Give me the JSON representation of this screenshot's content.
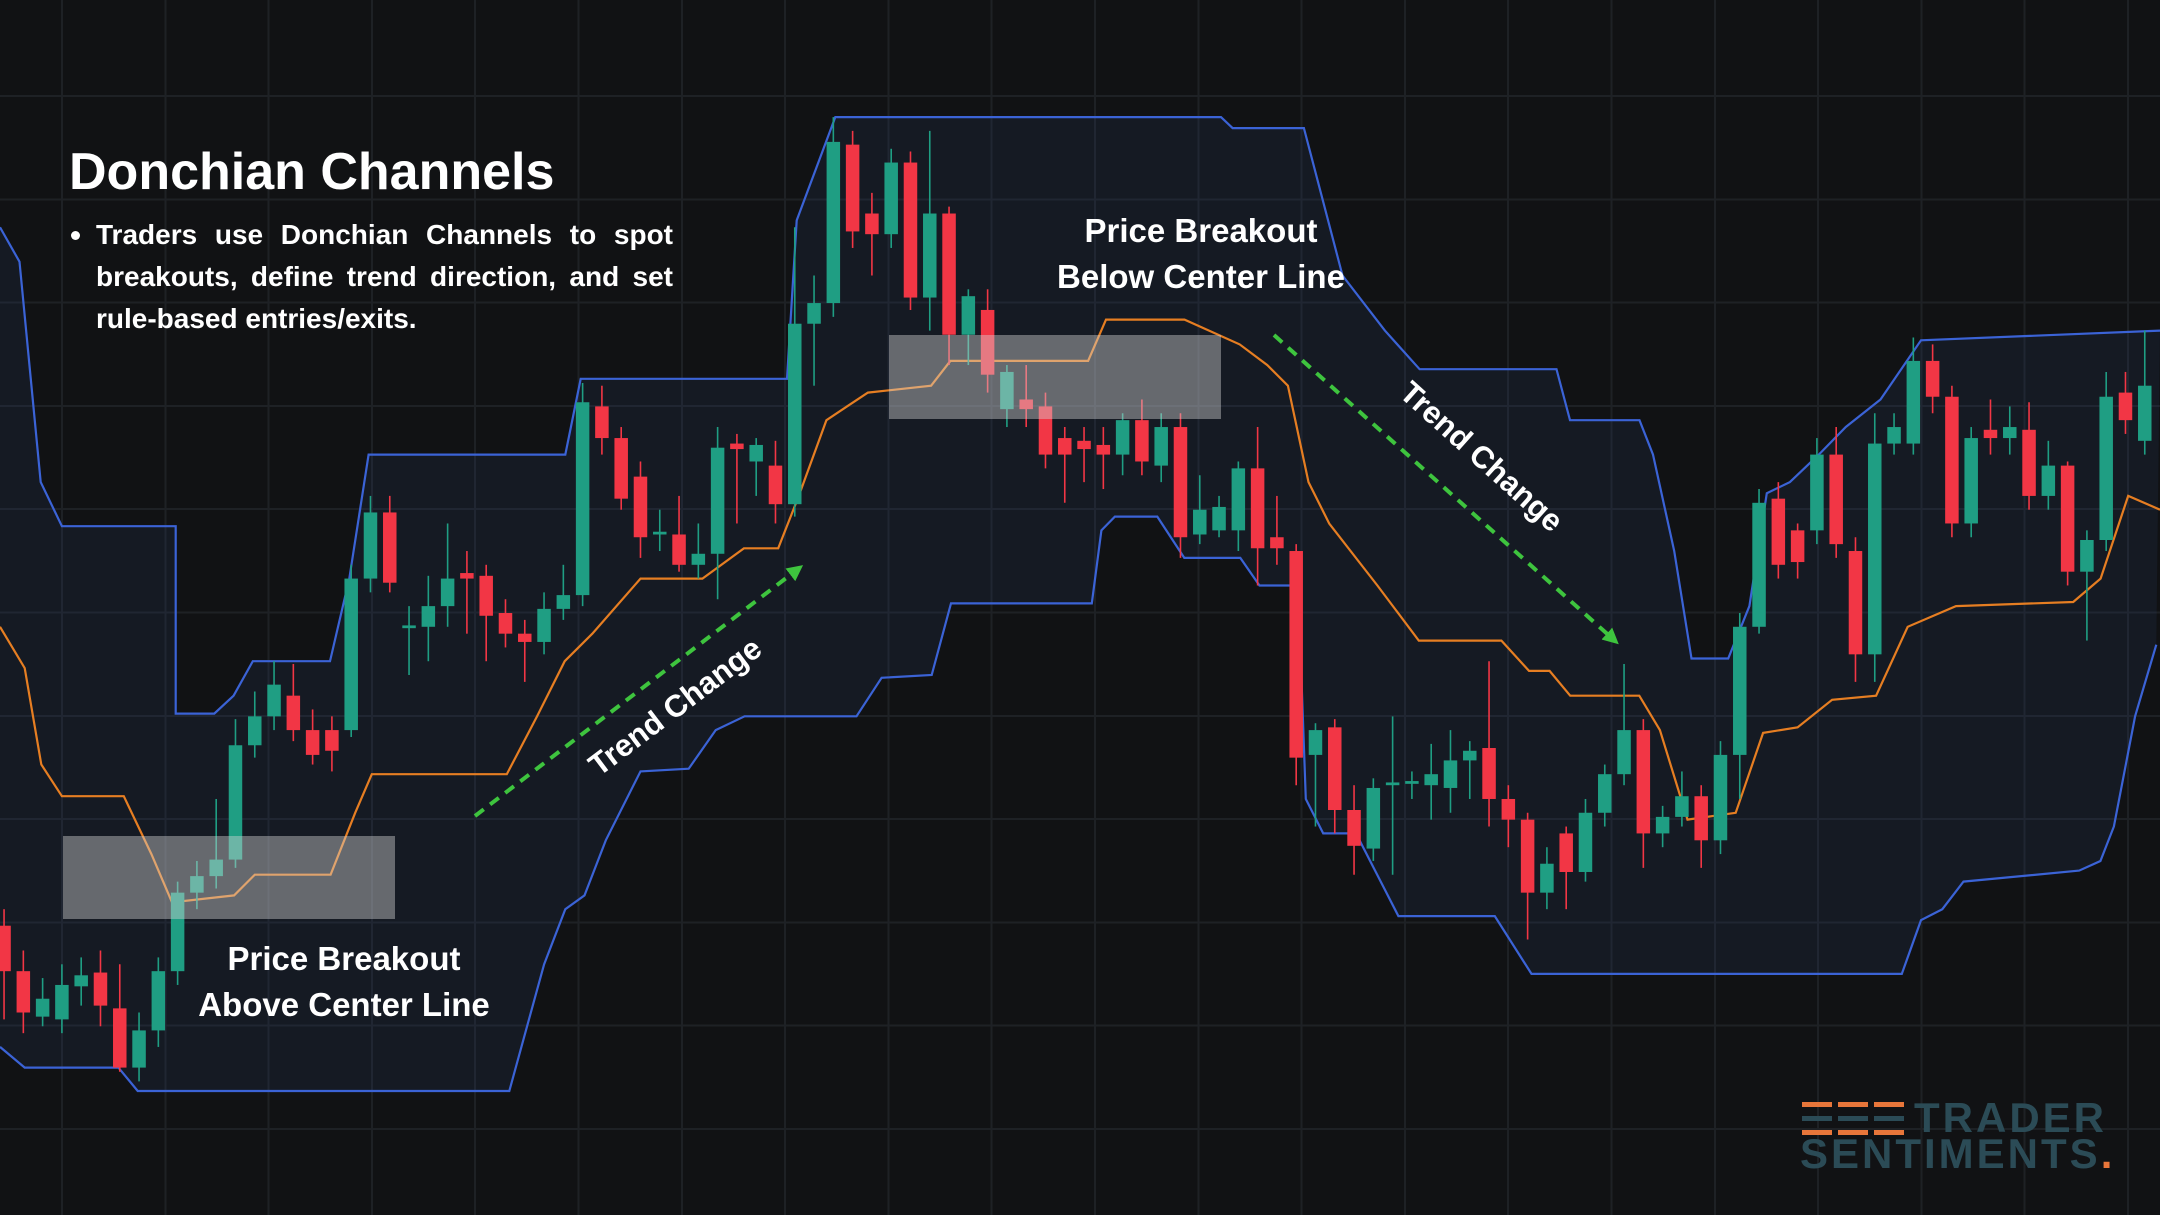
{
  "chart_data": {
    "type": "candlestick",
    "title": "Donchian Channels",
    "bullets": [
      "Traders use Donchian Channels to spot breakouts, define trend direction, and set rule-based entries/exits."
    ],
    "annotations": [
      {
        "lines": [
          "Price Breakout",
          "Above Center Line"
        ]
      },
      {
        "lines": [
          "Price Breakout",
          "Below Center Line"
        ]
      }
    ],
    "trend_labels": [
      "Trend Change",
      "Trend Change"
    ],
    "logo": {
      "line1": "TRADER",
      "line2": "SENTIMENTS",
      "dot": "."
    },
    "xlim": [
      -0.21,
      111.79
    ],
    "ylim": [
      118,
      1000
    ],
    "up_color": "#1f9e83",
    "down_color": "#f23645",
    "open": [
      328,
      295,
      262,
      260,
      284,
      294,
      268,
      225,
      252,
      295,
      352,
      364,
      376,
      459,
      480,
      495,
      470,
      470,
      470,
      580,
      628,
      544,
      545,
      560,
      584,
      582,
      555,
      540,
      534,
      558,
      568,
      705,
      682,
      654,
      612,
      612,
      590,
      598,
      678,
      665,
      662,
      634,
      765,
      780,
      895,
      845,
      830,
      882,
      784,
      845,
      757,
      775,
      703,
      710,
      705,
      682,
      680,
      677,
      670,
      695,
      662,
      690,
      612,
      615,
      615,
      660,
      610,
      600,
      452,
      472,
      412,
      384,
      430,
      431,
      430,
      428,
      448,
      457,
      420,
      405,
      352,
      395,
      367,
      410,
      438,
      470,
      395,
      407,
      422,
      390,
      452,
      545,
      638,
      615,
      615,
      670,
      600,
      525,
      678,
      678,
      738,
      712,
      620,
      688,
      682,
      688,
      640,
      662,
      585,
      608,
      715,
      680
    ],
    "high": [
      340,
      310,
      290,
      300,
      305,
      310,
      300,
      265,
      305,
      360,
      375,
      420,
      478,
      498,
      520,
      518,
      485,
      480,
      590,
      640,
      640,
      560,
      582,
      620,
      600,
      590,
      565,
      550,
      570,
      590,
      722,
      720,
      690,
      665,
      630,
      640,
      620,
      690,
      685,
      682,
      680,
      835,
      800,
      915,
      905,
      860,
      892,
      890,
      905,
      850,
      790,
      790,
      735,
      735,
      715,
      690,
      690,
      690,
      700,
      710,
      700,
      700,
      655,
      640,
      665,
      690,
      640,
      605,
      475,
      478,
      430,
      435,
      480,
      440,
      460,
      470,
      462,
      520,
      430,
      410,
      385,
      400,
      420,
      445,
      518,
      478,
      415,
      440,
      430,
      462,
      555,
      645,
      650,
      620,
      682,
      690,
      610,
      700,
      700,
      755,
      750,
      720,
      690,
      710,
      705,
      708,
      680,
      665,
      615,
      730,
      730,
      760
    ],
    "low": [
      260,
      250,
      255,
      250,
      270,
      255,
      222,
      215,
      240,
      285,
      340,
      355,
      370,
      450,
      470,
      462,
      445,
      440,
      465,
      570,
      570,
      510,
      520,
      545,
      540,
      520,
      530,
      505,
      525,
      550,
      560,
      670,
      630,
      595,
      600,
      585,
      580,
      565,
      620,
      640,
      620,
      625,
      720,
      770,
      820,
      800,
      820,
      775,
      760,
      735,
      735,
      715,
      690,
      690,
      660,
      635,
      650,
      645,
      655,
      655,
      650,
      595,
      605,
      610,
      600,
      575,
      590,
      430,
      400,
      395,
      365,
      375,
      365,
      420,
      405,
      410,
      420,
      400,
      385,
      318,
      340,
      340,
      360,
      400,
      430,
      370,
      385,
      400,
      370,
      380,
      420,
      540,
      580,
      580,
      605,
      595,
      505,
      505,
      670,
      670,
      700,
      610,
      610,
      670,
      670,
      630,
      630,
      575,
      535,
      600,
      685,
      670
    ],
    "close": [
      295,
      265,
      275,
      285,
      292,
      270,
      225,
      252,
      295,
      352,
      364,
      376,
      459,
      480,
      503,
      470,
      452,
      455,
      580,
      628,
      577,
      546,
      560,
      580,
      580,
      553,
      540,
      534,
      558,
      568,
      708,
      682,
      638,
      610,
      614,
      590,
      598,
      675,
      674,
      677,
      634,
      765,
      780,
      897,
      832,
      830,
      882,
      784,
      845,
      757,
      785,
      728,
      730,
      703,
      670,
      670,
      674,
      670,
      695,
      665,
      690,
      610,
      630,
      632,
      660,
      602,
      602,
      450,
      470,
      412,
      386,
      428,
      432,
      433,
      438,
      448,
      455,
      420,
      405,
      352,
      373,
      367,
      410,
      438,
      470,
      395,
      407,
      422,
      390,
      452,
      545,
      635,
      590,
      592,
      670,
      605,
      525,
      678,
      690,
      738,
      712,
      620,
      682,
      682,
      690,
      640,
      662,
      585,
      608,
      712,
      695,
      720
    ],
    "channels": [
      {
        "color": "#3b63d6",
        "x": [
          -0.21,
          0.8,
          1.9,
          3,
          8.9,
          8.9,
          10.9,
          11.9,
          12.9,
          16.9,
          17.9,
          18.9,
          29.1,
          29.9,
          40.6,
          41.1,
          43.1,
          63.1,
          63.7,
          67.4,
          69.4,
          71.6,
          73.4,
          80.5,
          81.2,
          84.8,
          85.5,
          86.6,
          87.5,
          89.4,
          90.5,
          91.4,
          92.6,
          94.1,
          95.5,
          97.3,
          99.4,
          111.79
        ],
        "values": [
          835,
          810,
          650,
          618,
          618,
          482,
          482,
          495,
          520,
          520,
          580,
          670,
          670,
          725,
          725,
          840,
          915,
          915,
          907,
          907,
          800,
          760,
          732,
          732,
          695,
          695,
          670,
          600,
          522,
          522,
          560,
          642,
          650,
          670,
          690,
          710,
          753,
          760
        ]
      },
      {
        "color": "#e67e22",
        "x": [
          -0.21,
          1.07,
          1.93,
          3,
          6.21,
          7.64,
          8.71,
          11.93,
          13,
          16.93,
          18.21,
          19.07,
          26.07,
          27.64,
          29.07,
          30.5,
          33,
          36.21,
          38.36,
          40.14,
          41.21,
          42.64,
          43.71,
          44.79,
          48.07,
          49.07,
          56.21,
          57.14,
          61.21,
          64.07,
          65.5,
          66.57,
          67.64,
          68.71,
          71.21,
          73.36,
          77.64,
          79.07,
          80.14,
          81.21,
          84.79,
          85.86,
          87.29,
          89.79,
          91.21,
          93,
          94.79,
          97.07,
          98.71,
          101.21,
          107.29,
          108.71,
          110.14,
          111.79
        ],
        "values": [
          545,
          515,
          445,
          422,
          422,
          380,
          345,
          350,
          365,
          365,
          410,
          438,
          438,
          480,
          520,
          540,
          580,
          580,
          602,
          602,
          640,
          695,
          705,
          715,
          720,
          738,
          738,
          768,
          768,
          750,
          735,
          720,
          650,
          620,
          575,
          535,
          535,
          513,
          513,
          495,
          495,
          470,
          405,
          410,
          468,
          472,
          492,
          495,
          545,
          560,
          563,
          580,
          640,
          630
        ]
      },
      {
        "color": "#3b63d6",
        "x": [
          -0.21,
          1.07,
          5.93,
          6.93,
          26.2,
          28,
          29.1,
          30.1,
          31.2,
          33,
          35.5,
          36.9,
          38.4,
          44.2,
          45.5,
          48.1,
          49.1,
          56.4,
          56.9,
          57.6,
          59.8,
          61.2,
          64.1,
          65.1,
          67.1,
          67.5,
          68.4,
          70.1,
          71.2,
          72.3,
          77.3,
          79.2,
          98.4,
          99.4,
          100.5,
          101.6,
          107.6,
          108.7,
          109.4,
          110.5,
          111.6
        ],
        "values": [
          240,
          225,
          225,
          208,
          208,
          300,
          340,
          350,
          390,
          440,
          442,
          470,
          480,
          480,
          508,
          510,
          562,
          562,
          615,
          625,
          625,
          595,
          595,
          575,
          575,
          420,
          395,
          395,
          365,
          335,
          335,
          293,
          293,
          332,
          340,
          360,
          368,
          375,
          400,
          480,
          532
        ]
      }
    ]
  }
}
